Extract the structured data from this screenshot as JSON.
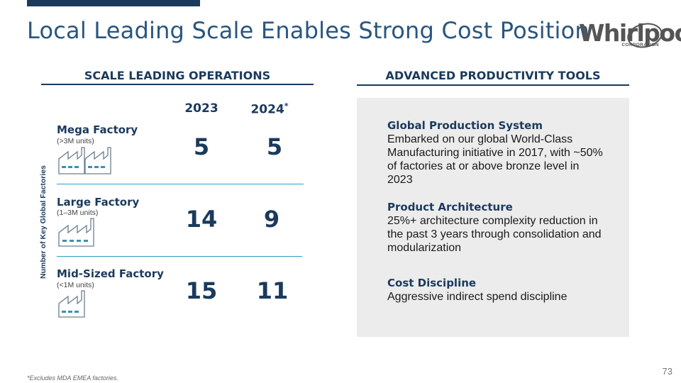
{
  "title": "Local Leading Scale Enables Strong Cost Position",
  "logo": {
    "word": "Whirlpool",
    "sub": "CORPORATION"
  },
  "left_section": {
    "heading": "SCALE LEADING OPERATIONS",
    "y_axis_title": "Number of Key Global Factories",
    "years": [
      "2023",
      "2024"
    ],
    "year_2024_mark": "*",
    "rows": [
      {
        "name": "Mega Factory",
        "sub": "(>3M units)",
        "v2023": "5",
        "v2024": "5"
      },
      {
        "name": "Large Factory",
        "sub": "(1–3M units)",
        "v2023": "14",
        "v2024": "9"
      },
      {
        "name": "Mid-Sized Factory",
        "sub": "(<1M units)",
        "v2023": "15",
        "v2024": "11"
      }
    ]
  },
  "right_section": {
    "heading": "ADVANCED PRODUCTIVITY TOOLS",
    "items": [
      {
        "heading": "Global Production System",
        "body": "Embarked on our global World-Class Manufacturing initiative in 2017, with ~50% of factories at or above bronze level in 2023"
      },
      {
        "heading": "Product Architecture",
        "body": "25%+ architecture complexity reduction in the past 3 years through consolidation and modularization"
      },
      {
        "heading": "Cost Discipline",
        "body": "Aggressive indirect spend discipline"
      }
    ]
  },
  "footnote": "*Excludes MDA EMEA factories.",
  "page_number": "73",
  "colors": {
    "navy": "#1b3a5c",
    "title_blue": "#2a5680",
    "teal_rule": "#2aa0c0",
    "panel_grey": "#ececec"
  }
}
